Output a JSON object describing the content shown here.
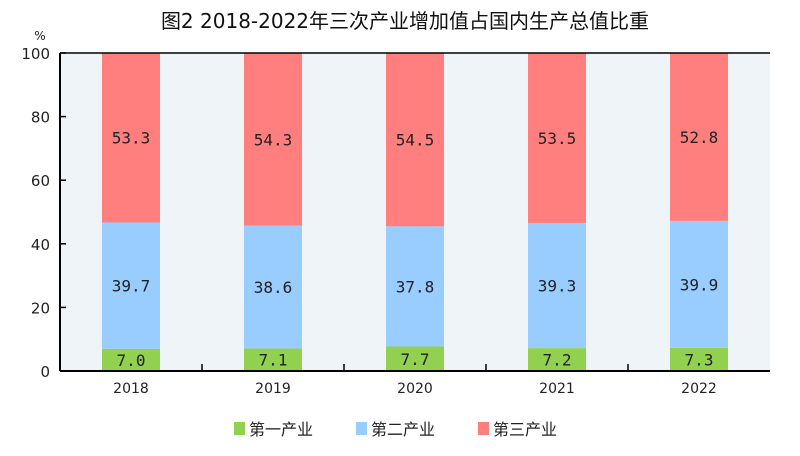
{
  "chart_data": {
    "type": "bar",
    "stacked": true,
    "title": "图2 2018-2022年三次产业增加值占国内生产总值比重",
    "ylabel": "%",
    "ylim": [
      0,
      100
    ],
    "yticks": [
      0,
      20,
      40,
      60,
      80,
      100
    ],
    "categories": [
      "2018",
      "2019",
      "2020",
      "2021",
      "2022"
    ],
    "series": [
      {
        "name": "第一产业",
        "color": "#92d050",
        "values": [
          7.0,
          7.1,
          7.7,
          7.2,
          7.3
        ]
      },
      {
        "name": "第二产业",
        "color": "#99ccff",
        "values": [
          39.7,
          38.6,
          37.8,
          39.3,
          39.9
        ]
      },
      {
        "name": "第三产业",
        "color": "#ff7f7f",
        "values": [
          53.3,
          54.3,
          54.5,
          53.5,
          52.8
        ]
      }
    ],
    "data_labels": true,
    "legend": "bottom",
    "plot_background": "#eef4f8",
    "grid": false
  }
}
